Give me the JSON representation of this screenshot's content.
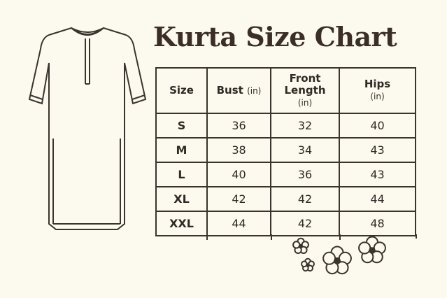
{
  "title": "Kurta Size Chart",
  "table": {
    "headers": [
      {
        "label": "Size",
        "unit": ""
      },
      {
        "label": "Bust",
        "unit": "(in)"
      },
      {
        "label": "Front Length",
        "unit": "(in)"
      },
      {
        "label": "Hips",
        "unit": "(in)"
      }
    ],
    "rows": [
      [
        "S",
        "36",
        "32",
        "40"
      ],
      [
        "M",
        "38",
        "34",
        "43"
      ],
      [
        "L",
        "40",
        "36",
        "43"
      ],
      [
        "XL",
        "42",
        "42",
        "44"
      ],
      [
        "XXL",
        "44",
        "42",
        "48"
      ]
    ]
  },
  "colors": {
    "background": "#fcf9ee",
    "ink": "#3a342e",
    "title": "#3b2e26"
  }
}
